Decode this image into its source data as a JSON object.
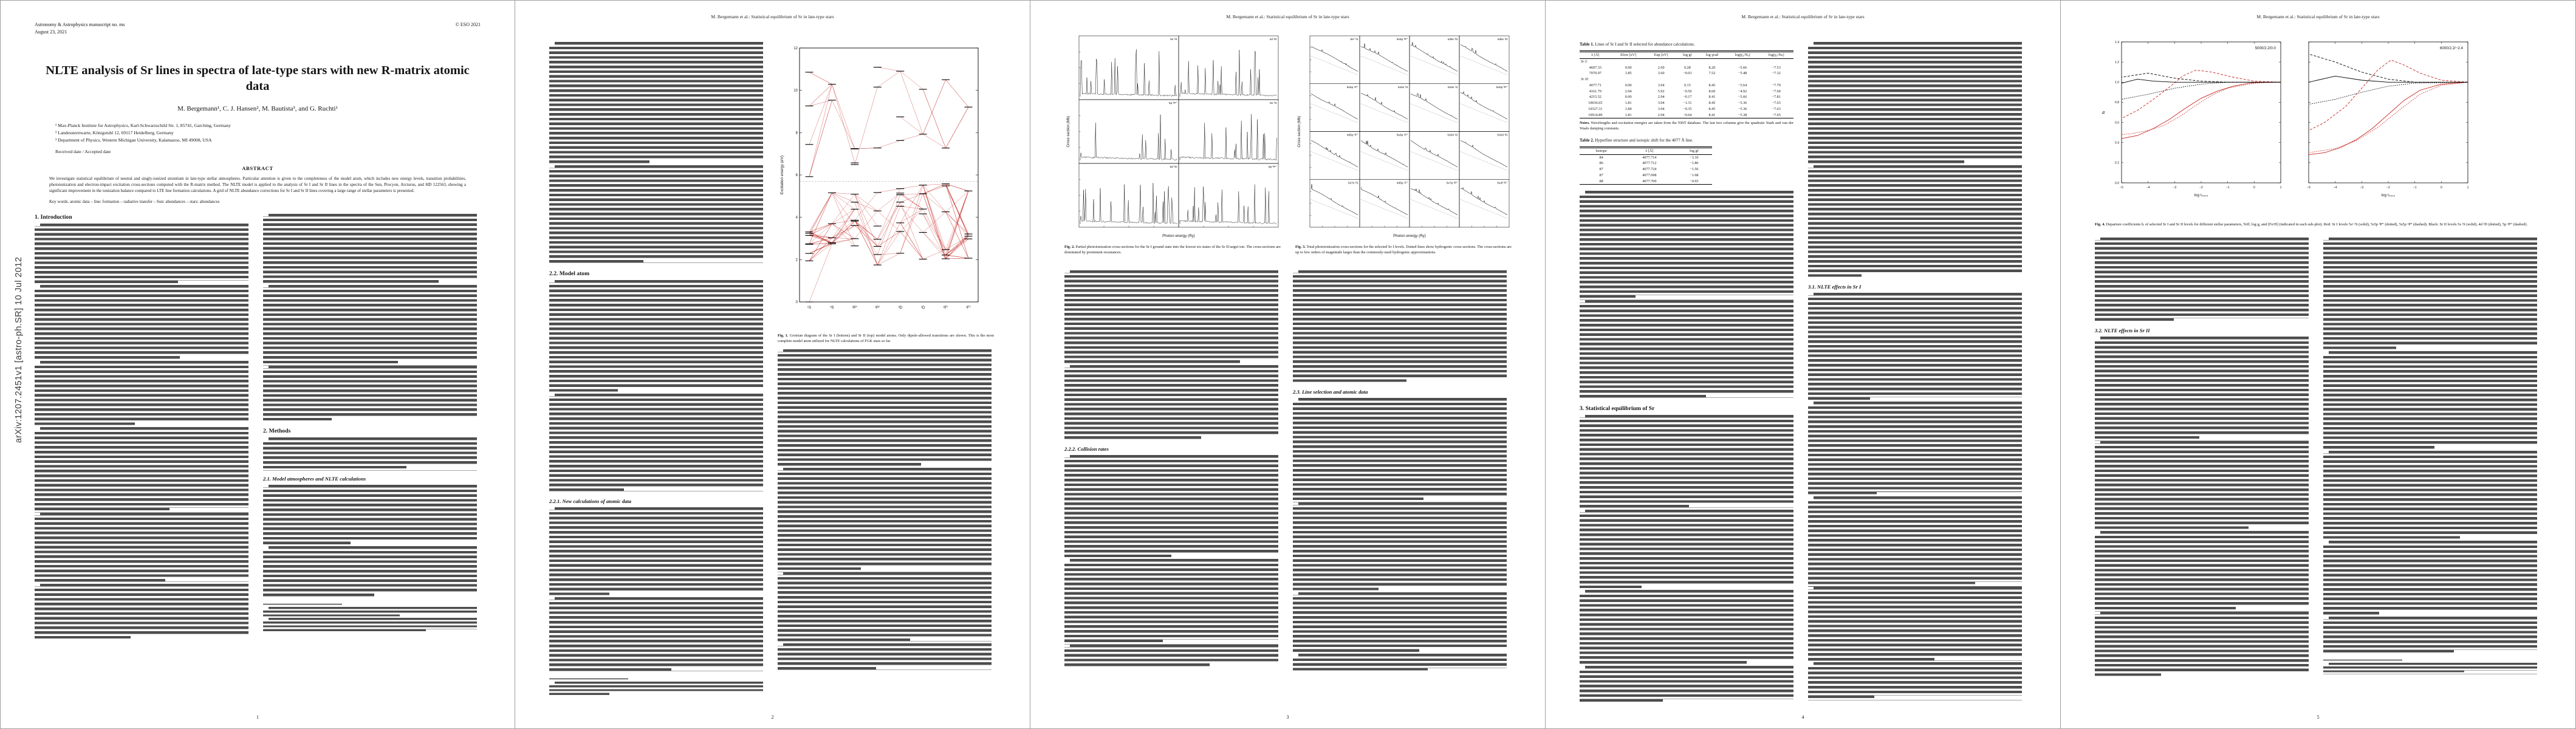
{
  "doc": {
    "arxiv_label": "arXiv:1207.2451v1  [astro-ph.SR]  10 Jul 2012",
    "running_head": "M. Bergemann et al.: Statistical equilibrium of Sr in late-type stars",
    "header": {
      "manuscript": "Astronomy & Astrophysics manuscript no. ms",
      "date": "August 23, 2021",
      "copyright": "© ESO 2021"
    },
    "title": "NLTE analysis of Sr lines in spectra of late-type stars with new R-matrix atomic data",
    "authors": "M. Bergemann¹, C. J. Hansen², M. Bautista³, and G. Ruchti¹",
    "affiliations": [
      "¹ Max-Planck Institute for Astrophysics, Karl-Schwarzschild Str. 1, 85741, Garching, Germany",
      "² Landessternwarte, Königstuhl 12, 69117 Heidelberg, Germany",
      "³ Department of Physics, Western Michigan University, Kalamazoo, MI 49008, USA"
    ],
    "received": "Received date / Accepted date",
    "abstract_head": "ABSTRACT",
    "abstract": "We investigate statistical equilibrium of neutral and singly-ionized strontium in late-type stellar atmospheres. Particular attention is given to the completeness of the model atom, which includes new energy levels, transition probabilities, photoionization and electron-impact excitation cross-sections computed with the R-matrix method. The NLTE model is applied to the analysis of Sr I and Sr II lines in the spectra of the Sun, Procyon, Arcturus, and HD 122563, showing a significant improvement in the ionization balance compared to LTE line formation calculations. A grid of NLTE abundance corrections for Sr I and Sr II lines covering a large range of stellar parameters is presented.",
    "keywords": "Key words. atomic data – line: formation – radiative transfer – Sun: abundances – stars: abundances",
    "pages": [
      "1",
      "2",
      "3",
      "4",
      "5"
    ]
  },
  "sections": {
    "intro": "1. Introduction",
    "methods": "2. Methods",
    "s21": "2.1. Model atmospheres and NLTE calculations",
    "s22": "2.2. Model atom",
    "s221": "2.2.1. New calculations of atomic data",
    "s222": "2.2.2. Collision rates",
    "s23": "2.3. Line selection and atomic data",
    "s3": "3. Statistical equilibrium of Sr",
    "s31": "3.1. NLTE effects in Sr I",
    "s32": "3.2. NLTE effects in Sr II"
  },
  "figures": {
    "fig1": {
      "label": "Fig. 1.",
      "caption": "Grotrian diagram of the Sr I (bottom) and Sr II (top) model atoms. Only dipole-allowed transitions are shown. This is the most complete model atom utilized for NLTE calculations of FGK stars so far.",
      "ylabel": "Excitation energy (eV)",
      "terms": [
        "¹S",
        "³S",
        "³P°",
        "¹P°",
        "³D",
        "¹D",
        "³F°",
        "¹F°"
      ]
    },
    "fig2": {
      "label": "Fig. 2.",
      "caption": "Partial photoionization cross-sections for the Sr I ground state into the lowest six states of the Sr II target ion. The cross-sections are dominated by prominent resonances.",
      "xlabel": "Photon energy (Ry)",
      "ylabel": "Cross section (Mb)",
      "cols": 2,
      "rows": 3,
      "mode": "spiky",
      "panels": [
        "5s ²S",
        "4d ²D",
        "5p ²P°",
        "6s ²S",
        "5d ²D",
        "6p ²P°"
      ]
    },
    "fig3": {
      "label": "Fig. 3.",
      "caption": "Total photoionization cross-sections for the selected Sr I levels. Dotted lines show hydrogenic cross-sections. The cross-sections are up to few orders of magnitude larger than the commonly-used hydrogenic approximations.",
      "xlabel": "Photon energy (Ry)",
      "ylabel": "Cross section (Mb)",
      "cols": 4,
      "rows": 4,
      "mode": "smooth",
      "panels": [
        "5s² ¹S",
        "5s5p ³P°",
        "4d5s ³D",
        "4d5s ¹D",
        "5s5p ¹P°",
        "5s6s ³S",
        "5s6s ¹S",
        "5s6p ³P°",
        "4d5p ³F°",
        "5s6p ¹P°",
        "5s5d ¹D",
        "5s5d ³D",
        "5s7s ³S",
        "4d5p ¹F°",
        "5s7p ³P°",
        "5s4f ³F°"
      ]
    },
    "fig4": {
      "label": "Fig. 4.",
      "caption": "Departure coefficients bᵢ of selected Sr I and Sr II levels for different stellar parameters, Teff, log g, and [Fe/H] (indicated in each sub-plot). Red: Sr I levels 5s² ¹S (solid), 5s5p ³P° (dotted), 5s5p ¹P° (dashed). Black: Sr II levels 5s ²S (solid), 4d ²D (dotted), 5p ²P° (dashed).",
      "xlabel": "log τ₅₀₀₀",
      "ylabel": "bᵢ",
      "panels": [
        "5000/2.2/0.0",
        "6000/2.2/−2.4"
      ]
    }
  },
  "tables": {
    "t1": {
      "label": "Table 1.",
      "title": "Lines of Sr I and Sr II selected for abundance calculations.",
      "headers": [
        "λ [Å]",
        "Elow [eV]",
        "Eup [eV]",
        "log gf",
        "log γrad",
        "log(γ₄/Nₑ)",
        "log(γ₆/Nₕ)"
      ],
      "rows": [
        [
          "Sr I:"
        ],
        [
          "4607.33",
          "0.00",
          "2.69",
          "0.28",
          "8.20",
          "−5.66",
          "−7.53"
        ],
        [
          "7070.07",
          "1.85",
          "3.60",
          "−0.03",
          "7.52",
          "−5.48",
          "−7.32"
        ],
        [
          "Sr II:"
        ],
        [
          "4077.71",
          "0.00",
          "3.04",
          "0.15",
          "8.45",
          "−5.64",
          "−7.79"
        ],
        [
          "4161.79",
          "2.94",
          "5.92",
          "−0.50",
          "8.60",
          "−4.92",
          "−7.60"
        ],
        [
          "4215.52",
          "0.00",
          "2.94",
          "−0.17",
          "8.41",
          "−5.66",
          "−7.81"
        ],
        [
          "10036.65",
          "1.81",
          "3.04",
          "−1.31",
          "8.45",
          "−5.36",
          "−7.63"
        ],
        [
          "10327.31",
          "1.84",
          "3.04",
          "−0.35",
          "8.45",
          "−5.36",
          "−7.63"
        ],
        [
          "10914.89",
          "1.81",
          "2.94",
          "−0.64",
          "8.41",
          "−5.38",
          "−7.65"
        ]
      ],
      "notes_label": "Notes.",
      "notes": "Wavelengths and excitation energies are taken from the NIST database. The last two columns give the quadratic Stark and van der Waals damping constants."
    },
    "t2": {
      "label": "Table 2.",
      "title": "Hyperfine structure and isotopic shift for the 4077 Å line.",
      "headers": [
        "Isotope",
        "λ [Å]",
        "log gf"
      ],
      "rows": [
        [
          "84",
          "4077.714",
          "−3.10"
        ],
        [
          "86",
          "4077.712",
          "−1.86"
        ],
        [
          "87",
          "4077.724",
          "−1.56"
        ],
        [
          "87",
          "4077.698",
          "−1.68"
        ],
        [
          "88",
          "4077.709",
          "−0.93"
        ]
      ]
    }
  }
}
